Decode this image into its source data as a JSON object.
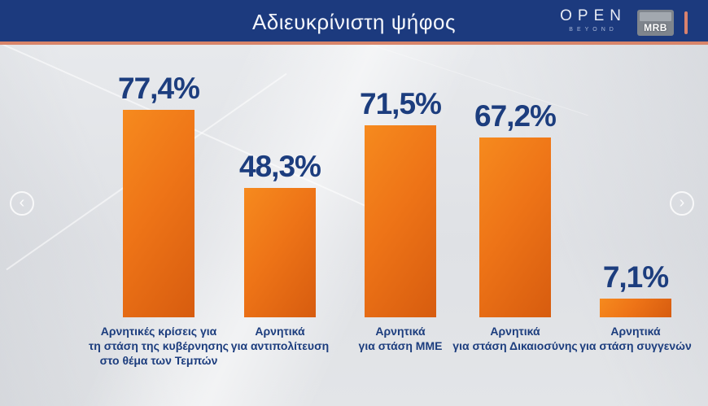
{
  "header": {
    "title": "Αδιευκρίνιστη ψήφος",
    "channel_logo": "OPEN",
    "channel_tagline": "BEYOND",
    "agency_logo": "MRB"
  },
  "nav": {
    "prev_label": "‹",
    "next_label": "›"
  },
  "colors": {
    "banner_blue": "#1c3a7e",
    "accent_salmon": "#d8856a",
    "bar_orange": "#ee7417",
    "text_blue": "#1c3d7e",
    "background_gray": "#e3e5e8"
  },
  "chart_data": {
    "type": "bar",
    "title": "Αδιευκρίνιστη ψήφος",
    "unit": "%",
    "ylim": [
      0,
      80
    ],
    "grid": false,
    "legend": false,
    "bar_color": "#ee7417",
    "categories": [
      "Αρνητικές κρίσεις για τη στάση της κυβέρνησης στο θέμα των Τεμπών",
      "Αρνητικά για αντιπολίτευση",
      "Αρνητικά για στάση ΜΜΕ",
      "Αρνητικά για στάση Δικαιοσύνης",
      "Αρνητικά για στάση συγγενών"
    ],
    "category_lines": [
      [
        "Αρνητικές κρίσεις για",
        "τη στάση της κυβέρνησης",
        "στο θέμα των Τεμπών"
      ],
      [
        "Αρνητικά",
        "για αντιπολίτευση"
      ],
      [
        "Αρνητικά",
        "για στάση ΜΜΕ"
      ],
      [
        "Αρνητικά",
        "για στάση Δικαιοσύνης"
      ],
      [
        "Αρνητικά",
        "για στάση συγγενών"
      ]
    ],
    "values": [
      77.4,
      48.3,
      71.5,
      67.2,
      7.1
    ],
    "value_labels": [
      "77,4%",
      "48,3%",
      "71,5%",
      "67,2%",
      "7,1%"
    ]
  }
}
